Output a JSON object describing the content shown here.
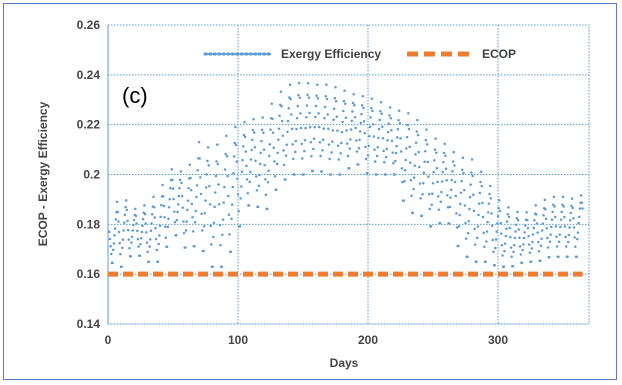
{
  "chart_data": {
    "type": "scatter",
    "panel_label": "(c)",
    "xlabel": "Days",
    "ylabel": "ECOP - Exergy Efficiency",
    "xlim": [
      0,
      370
    ],
    "ylim": [
      0.14,
      0.26
    ],
    "x_ticks": [
      0,
      100,
      200,
      300
    ],
    "x_tick_labels": [
      "0",
      "100",
      "200",
      "300"
    ],
    "y_ticks": [
      0.14,
      0.16,
      0.18,
      0.2,
      0.22,
      0.24,
      0.26
    ],
    "y_tick_labels": [
      "0.14",
      "0.16",
      "0.18",
      "0.2",
      "0.22",
      "0.24",
      "0.26"
    ],
    "grid": true,
    "legend_position": "top-right",
    "series": [
      {
        "name": "Exergy Efficiency",
        "style": "dotted",
        "color": "#5b9bd5",
        "envelope_x": [
          1,
          10,
          20,
          30,
          40,
          50,
          60,
          70,
          80,
          90,
          100,
          110,
          120,
          130,
          140,
          150,
          160,
          170,
          180,
          190,
          200,
          210,
          220,
          230,
          240,
          250,
          260,
          270,
          280,
          290,
          300,
          310,
          320,
          330,
          340,
          350,
          360,
          365
        ],
        "envelope_upper": [
          0.183,
          0.192,
          0.186,
          0.188,
          0.194,
          0.203,
          0.2,
          0.213,
          0.21,
          0.215,
          0.22,
          0.222,
          0.223,
          0.232,
          0.236,
          0.237,
          0.236,
          0.236,
          0.234,
          0.232,
          0.231,
          0.229,
          0.226,
          0.225,
          0.221,
          0.215,
          0.212,
          0.207,
          0.206,
          0.199,
          0.19,
          0.186,
          0.184,
          0.188,
          0.191,
          0.191,
          0.19,
          0.192
        ],
        "envelope_lower": [
          0.165,
          0.163,
          0.169,
          0.165,
          0.165,
          0.177,
          0.17,
          0.172,
          0.163,
          0.163,
          0.178,
          0.19,
          0.184,
          0.195,
          0.2,
          0.2,
          0.202,
          0.2,
          0.2,
          0.205,
          0.2,
          0.2,
          0.2,
          0.185,
          0.184,
          0.178,
          0.183,
          0.17,
          0.165,
          0.165,
          0.163,
          0.163,
          0.165,
          0.165,
          0.167,
          0.167,
          0.167,
          0.175
        ]
      },
      {
        "name": "ECOP",
        "style": "dashed",
        "color": "#ed7d31",
        "x": [
          0,
          365
        ],
        "y": [
          0.16,
          0.16
        ]
      }
    ]
  }
}
